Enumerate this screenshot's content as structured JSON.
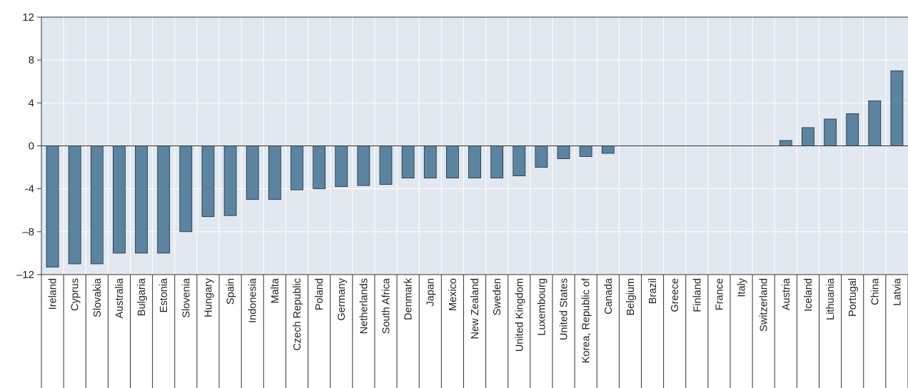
{
  "chart_data": {
    "type": "bar",
    "title": "",
    "xlabel": "",
    "ylabel": "",
    "ylim": [
      -12,
      12
    ],
    "yticks": [
      12,
      8,
      4,
      0,
      -4,
      -8,
      -12
    ],
    "ytick_labels": [
      "12",
      "8",
      "4",
      "0",
      "-4",
      "–8",
      "–12"
    ],
    "grid": true,
    "categories": [
      "Ireland",
      "Cyprus",
      "Slovakia",
      "Australia",
      "Bulgaria",
      "Estonia",
      "Slovenia",
      "Hungary",
      "Spain",
      "Indonesia",
      "Malta",
      "Czech Republic",
      "Poland",
      "Germany",
      "Netherlands",
      "South Africa",
      "Denmark",
      "Japan",
      "Mexico",
      "New Zealand",
      "Sweden",
      "United Kingdom",
      "Luxembourg",
      "United States",
      "Korea, Republic of",
      "Canada",
      "Belgium",
      "Brazil",
      "Greece",
      "Finland",
      "France",
      "Italy",
      "Switzerland",
      "Austria",
      "Iceland",
      "Lithuania",
      "Portugal",
      "China",
      "Latvia"
    ],
    "values": [
      -11.3,
      -11.0,
      -11.0,
      -10.0,
      -10.0,
      -10.0,
      -8.0,
      -6.6,
      -6.5,
      -5.0,
      -5.0,
      -4.1,
      -4.0,
      -3.8,
      -3.7,
      -3.6,
      -3.0,
      -3.0,
      -3.0,
      -3.0,
      -3.0,
      -2.8,
      -2.0,
      -1.2,
      -1.0,
      -0.7,
      0,
      0,
      0,
      0,
      0,
      0,
      0,
      0.5,
      1.7,
      2.5,
      3.0,
      4.2,
      7.0
    ],
    "colors": {
      "bar_fill": "#5b84a0",
      "bar_stroke": "#1f2f3a",
      "plot_background": "#e2e8f0",
      "grid": "#ffffff",
      "axis": "#333333"
    }
  }
}
